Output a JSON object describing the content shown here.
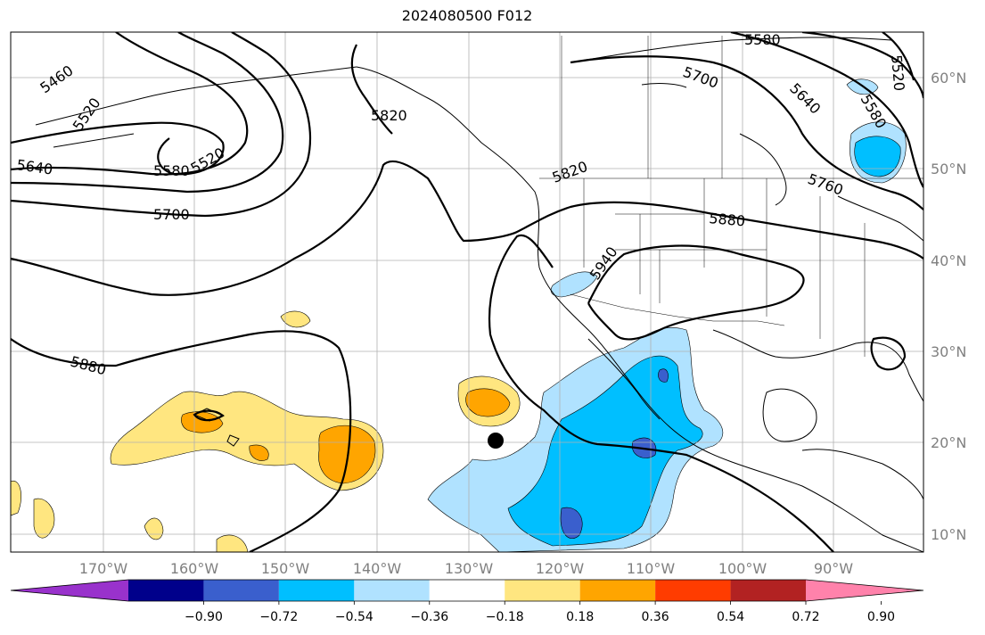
{
  "title": "2024080500 F012",
  "lon_labels": [
    "170°W",
    "160°W",
    "150°W",
    "140°W",
    "130°W",
    "120°W",
    "110°W",
    "100°W",
    "90°W"
  ],
  "lat_labels": [
    "60°N",
    "50°N",
    "40°N",
    "30°N",
    "20°N",
    "10°N"
  ],
  "contour_labels": {
    "c5460": "5460",
    "c5520a": "5520",
    "c5520b": "5520",
    "c5520c": "5520",
    "c5580a": "5580",
    "c5580b": "5580",
    "c5580c": "5580",
    "c5640a": "5640",
    "c5640b": "5640",
    "c5700a": "5700",
    "c5700b": "5700",
    "c5700c": "5700",
    "c5760": "5760",
    "c5820a": "5820",
    "c5820b": "5820",
    "c5880a": "5880",
    "c5880b": "5880",
    "c5940": "5940"
  },
  "colorbar": {
    "ticks": [
      "−0.90",
      "−0.72",
      "−0.54",
      "−0.36",
      "−0.18",
      "0.18",
      "0.36",
      "0.54",
      "0.72",
      "0.90"
    ],
    "colors": [
      "#9932cc",
      "#00008b",
      "#3a5fcd",
      "#00bfff",
      "#b0e2ff",
      "#ffffff",
      "#ffe680",
      "#ffa500",
      "#ff3c00",
      "#b22222",
      "#ff82ab"
    ]
  }
}
